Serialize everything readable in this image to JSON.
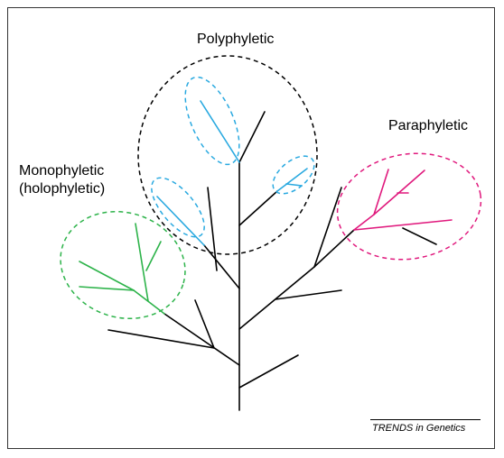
{
  "labels": {
    "polyphyletic": "Polyphyletic",
    "paraphyletic": "Paraphyletic",
    "monophyletic_line1": "Monophyletic",
    "monophyletic_line2": "(holophyletic)"
  },
  "credit": "TRENDS in Genetics",
  "colors": {
    "tree": "#000000",
    "monophyletic": "#2db34a",
    "polyphyletic_branch": "#29a9e0",
    "polyphyletic_group": "#000000",
    "paraphyletic": "#e0197d"
  }
}
